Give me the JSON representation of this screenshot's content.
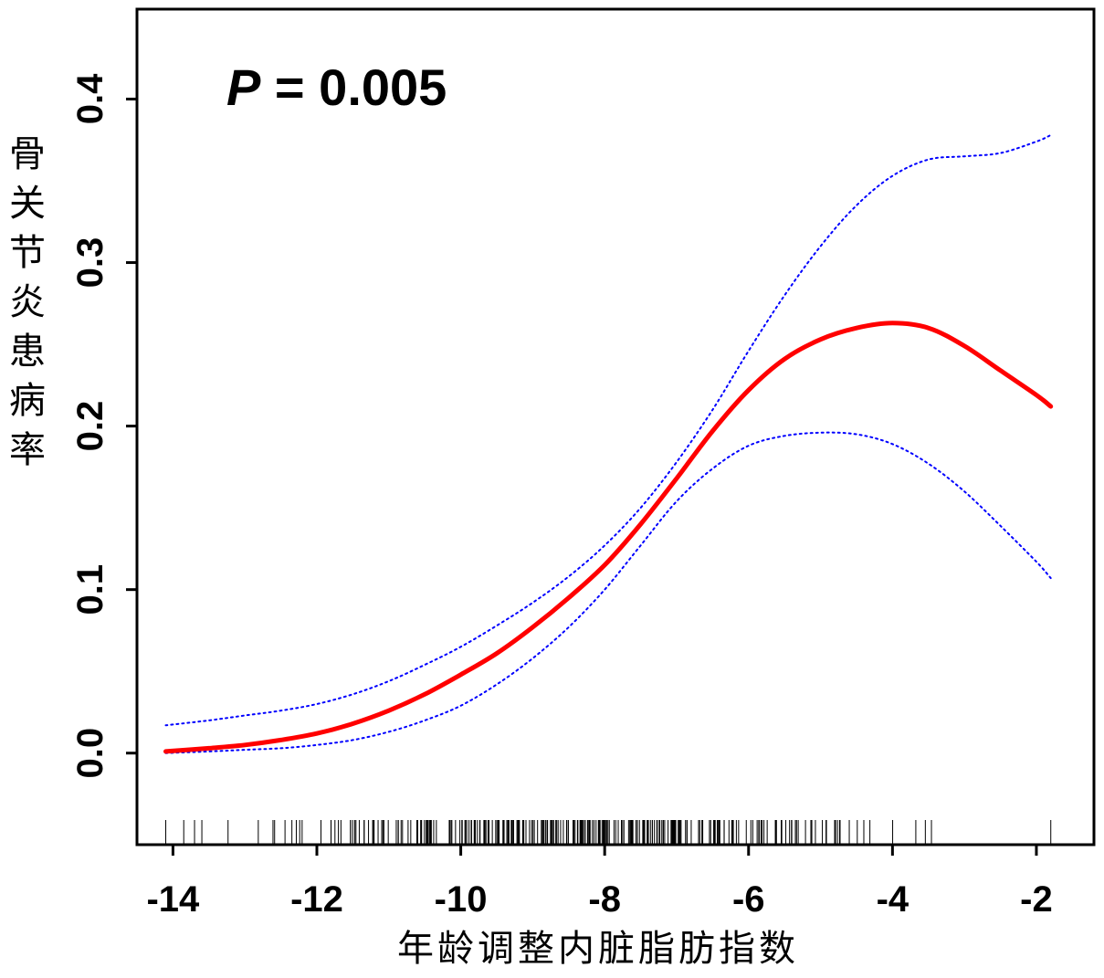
{
  "chart_data": {
    "type": "line",
    "annotation": {
      "italic": "P",
      "rest": " = 0.005"
    },
    "xlabel": "年龄调整内脏脂肪指数",
    "ylabel": "骨关节炎患病率",
    "xlim": [
      -14.5,
      -1.2
    ],
    "ylim": [
      -0.056,
      0.455
    ],
    "x_ticks": [
      -14,
      -12,
      -10,
      -8,
      -6,
      -4,
      -2
    ],
    "y_ticks": [
      0.0,
      0.1,
      0.2,
      0.3,
      0.4
    ],
    "x_tick_labels": [
      "-14",
      "-12",
      "-10",
      "-8",
      "-6",
      "-4",
      "-2"
    ],
    "y_tick_labels": [
      "0.0",
      "0.1",
      "0.2",
      "0.3",
      "0.4"
    ],
    "grid": false,
    "series": [
      {
        "role": "estimate",
        "color": "#ff0000",
        "style": "solid",
        "x": [
          -14.1,
          -13.5,
          -13,
          -12.5,
          -12,
          -11.5,
          -11,
          -10.5,
          -10,
          -9.5,
          -9,
          -8.5,
          -8,
          -7.5,
          -7,
          -6.5,
          -6,
          -5.5,
          -5,
          -4.5,
          -4,
          -3.5,
          -3,
          -2.5,
          -2,
          -1.8
        ],
        "y": [
          0.001,
          0.003,
          0.005,
          0.008,
          0.012,
          0.018,
          0.026,
          0.036,
          0.048,
          0.061,
          0.077,
          0.095,
          0.115,
          0.14,
          0.168,
          0.197,
          0.222,
          0.241,
          0.253,
          0.26,
          0.263,
          0.26,
          0.249,
          0.234,
          0.219,
          0.212
        ]
      },
      {
        "role": "upper CI",
        "color": "#0000ff",
        "style": "dotted",
        "x": [
          -14.1,
          -13.5,
          -13,
          -12.5,
          -12,
          -11.5,
          -11,
          -10.5,
          -10,
          -9.5,
          -9,
          -8.5,
          -8,
          -7.5,
          -7,
          -6.5,
          -6,
          -5.5,
          -5,
          -4.5,
          -4,
          -3.5,
          -3,
          -2.5,
          -2,
          -1.8
        ],
        "y": [
          0.017,
          0.02,
          0.023,
          0.026,
          0.03,
          0.036,
          0.044,
          0.054,
          0.065,
          0.078,
          0.092,
          0.108,
          0.127,
          0.15,
          0.178,
          0.21,
          0.246,
          0.28,
          0.31,
          0.335,
          0.353,
          0.363,
          0.365,
          0.367,
          0.374,
          0.378
        ]
      },
      {
        "role": "lower CI",
        "color": "#0000ff",
        "style": "dotted",
        "x": [
          -14.1,
          -13.5,
          -13,
          -12.5,
          -12,
          -11.5,
          -11,
          -10.5,
          -10,
          -9.5,
          -9,
          -8.5,
          -8,
          -7.5,
          -7,
          -6.5,
          -6,
          -5.5,
          -5,
          -4.5,
          -4,
          -3.5,
          -3,
          -2.5,
          -2,
          -1.8
        ],
        "y": [
          0.0,
          0.001,
          0.002,
          0.003,
          0.005,
          0.008,
          0.013,
          0.02,
          0.029,
          0.042,
          0.058,
          0.077,
          0.1,
          0.127,
          0.154,
          0.174,
          0.188,
          0.194,
          0.196,
          0.195,
          0.189,
          0.177,
          0.16,
          0.139,
          0.117,
          0.107
        ]
      }
    ],
    "rug": {
      "color": "#000000",
      "description_count": 320,
      "x_min": -14.1,
      "x_max": -1.8
    }
  }
}
